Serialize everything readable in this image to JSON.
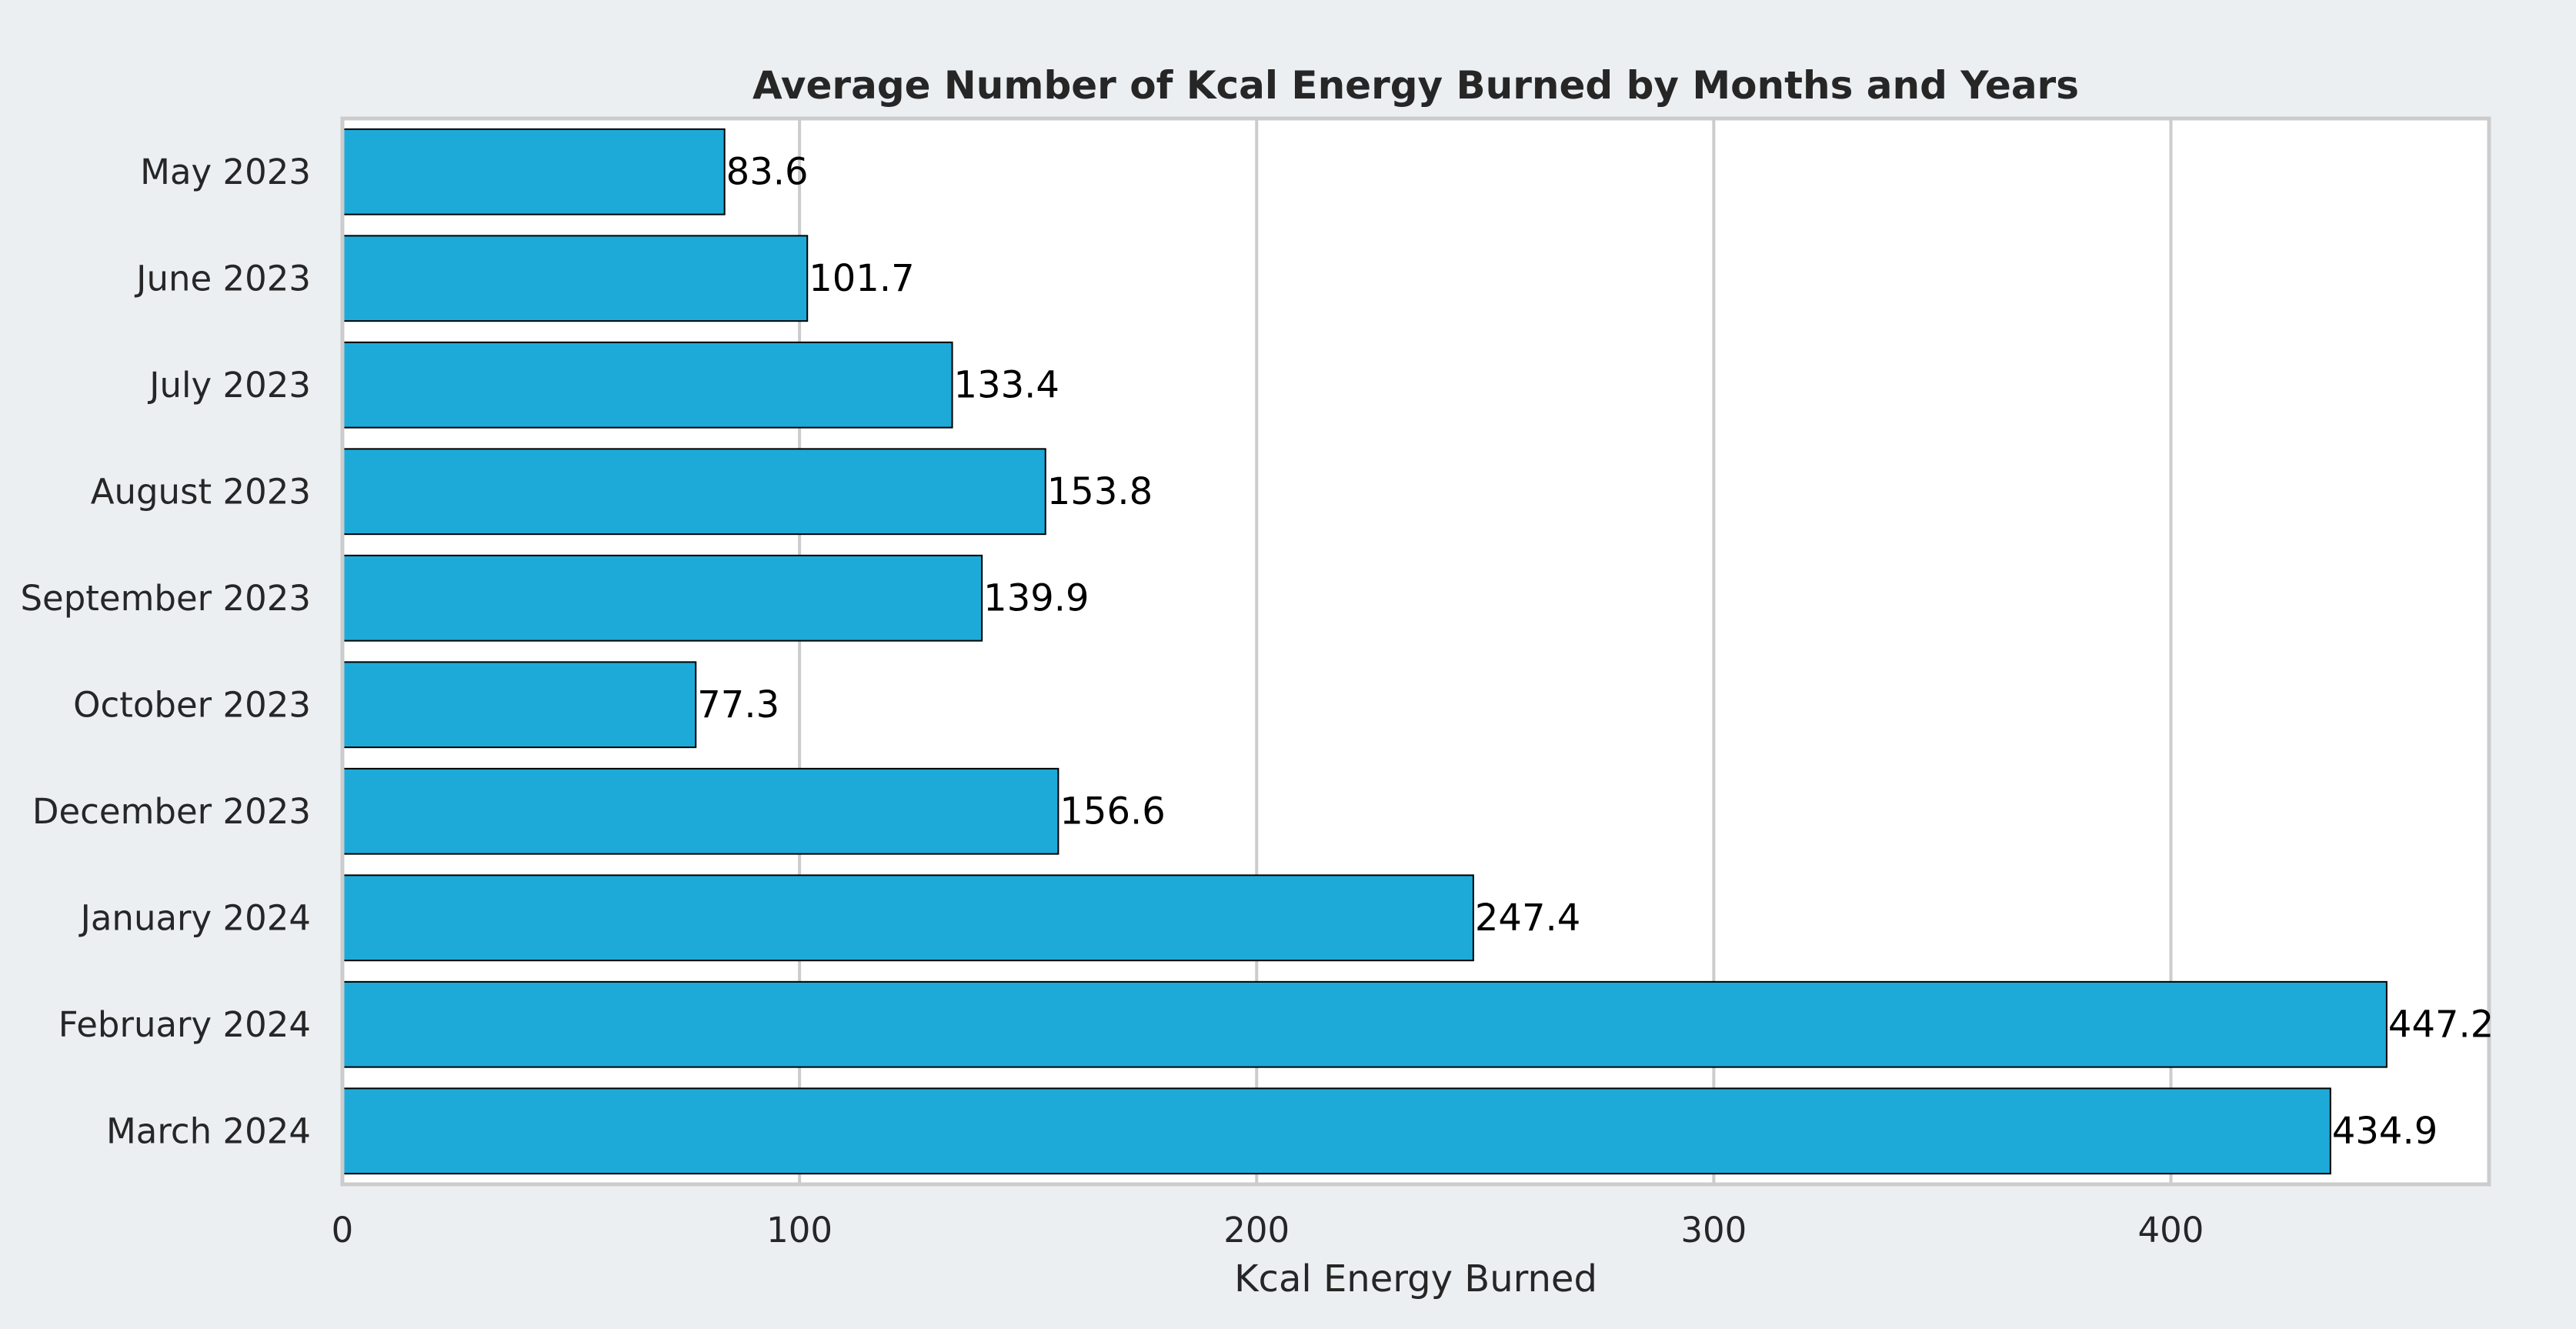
{
  "chart_data": {
    "type": "bar",
    "orientation": "horizontal",
    "title": "Average Number of Kcal Energy Burned by Months and Years",
    "xlabel": "Kcal Energy Burned",
    "ylabel": "",
    "categories": [
      "May 2023",
      "June 2023",
      "July 2023",
      "August 2023",
      "September 2023",
      "October 2023",
      "December 2023",
      "January 2024",
      "February 2024",
      "March 2024"
    ],
    "values": [
      83.6,
      101.7,
      133.4,
      153.8,
      139.9,
      77.3,
      156.6,
      247.4,
      447.2,
      434.9
    ],
    "value_labels": [
      "83.6",
      "101.7",
      "133.4",
      "153.8",
      "139.9",
      "77.3",
      "156.6",
      "247.4",
      "447.2",
      "434.9"
    ],
    "xlim": [
      0,
      469.6
    ],
    "xticks": [
      0,
      100,
      200,
      300,
      400
    ],
    "xtick_labels": [
      "0",
      "100",
      "200",
      "300",
      "400"
    ],
    "grid": true,
    "bar_color": "#1eaad8",
    "bar_edge_color": "#000000",
    "background_color": "#ebeff2",
    "plot_background_color": "#ffffff",
    "grid_color": "#cccccc"
  }
}
